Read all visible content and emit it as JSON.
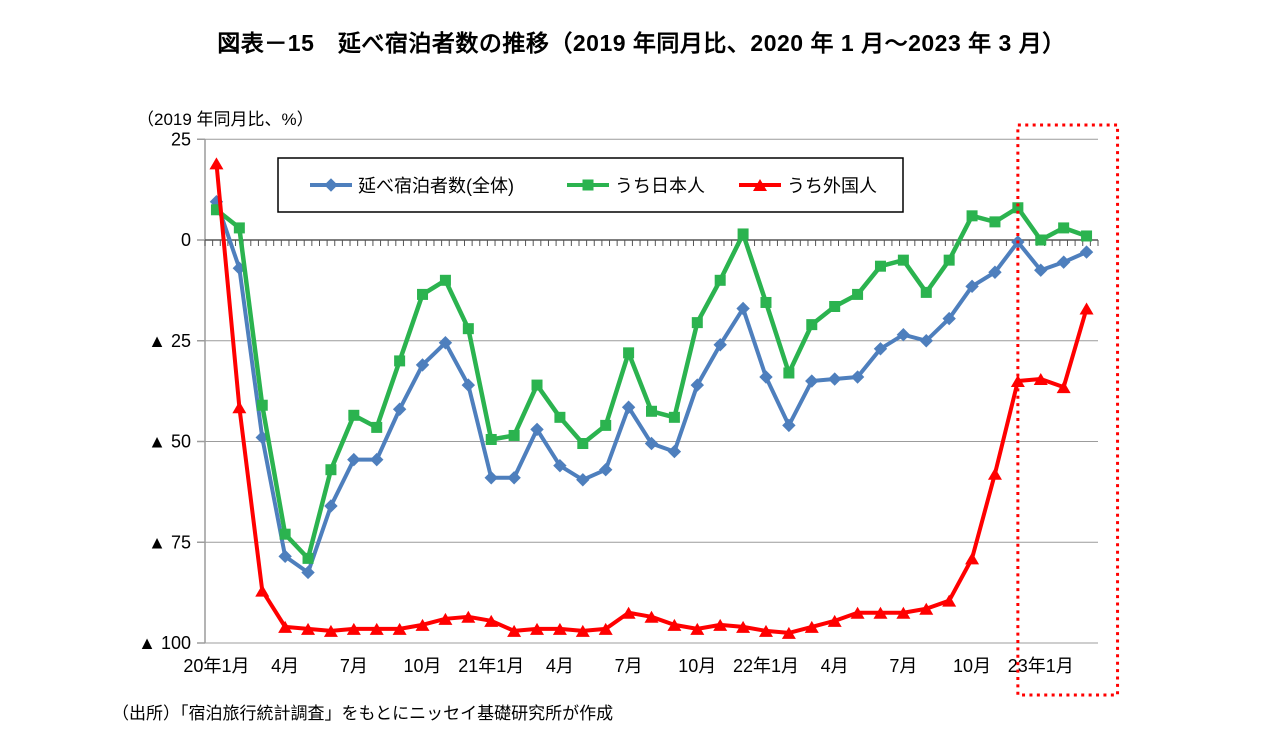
{
  "page": {
    "title": "図表－15　延べ宿泊者数の推移（2019 年同月比、2020 年 1 月～2023 年 3 月）",
    "source_note": "（出所）「宿泊旅行統計調査」をもとにニッセイ基礎研究所が作成"
  },
  "chart_data": {
    "type": "line",
    "title": "図表－15　延べ宿泊者数の推移（2019 年同月比、2020 年 1 月～2023 年 3 月）",
    "unit_label": "（2019 年同月比、%）",
    "grid": "horizontal",
    "legend_position": "top-center-inside",
    "ylim": [
      -100,
      25
    ],
    "y_ticks": [
      {
        "value": 25,
        "label": "25"
      },
      {
        "value": 0,
        "label": "0"
      },
      {
        "value": -25,
        "label": "▲ 25"
      },
      {
        "value": -50,
        "label": "▲ 50"
      },
      {
        "value": -75,
        "label": "▲ 75"
      },
      {
        "value": -100,
        "label": "▲ 100"
      }
    ],
    "x_months": [
      "2020-01",
      "2020-02",
      "2020-03",
      "2020-04",
      "2020-05",
      "2020-06",
      "2020-07",
      "2020-08",
      "2020-09",
      "2020-10",
      "2020-11",
      "2020-12",
      "2021-01",
      "2021-02",
      "2021-03",
      "2021-04",
      "2021-05",
      "2021-06",
      "2021-07",
      "2021-08",
      "2021-09",
      "2021-10",
      "2021-11",
      "2021-12",
      "2022-01",
      "2022-02",
      "2022-03",
      "2022-04",
      "2022-05",
      "2022-06",
      "2022-07",
      "2022-08",
      "2022-09",
      "2022-10",
      "2022-11",
      "2022-12",
      "2023-01",
      "2023-02",
      "2023-03"
    ],
    "x_tick_labels": [
      {
        "index": 0,
        "label": "20年1月"
      },
      {
        "index": 3,
        "label": "4月"
      },
      {
        "index": 6,
        "label": "7月"
      },
      {
        "index": 9,
        "label": "10月"
      },
      {
        "index": 12,
        "label": "21年1月"
      },
      {
        "index": 15,
        "label": "4月"
      },
      {
        "index": 18,
        "label": "7月"
      },
      {
        "index": 21,
        "label": "10月"
      },
      {
        "index": 24,
        "label": "22年1月"
      },
      {
        "index": 27,
        "label": "4月"
      },
      {
        "index": 30,
        "label": "7月"
      },
      {
        "index": 33,
        "label": "10月"
      },
      {
        "index": 36,
        "label": "23年1月"
      }
    ],
    "series": [
      {
        "name": "延べ宿泊者数(全体)",
        "color": "#4E7FBD",
        "marker": "diamond",
        "values": [
          9.5,
          -7,
          -49,
          -78.5,
          -82.5,
          -66,
          -54.5,
          -54.5,
          -42,
          -31,
          -25.5,
          -36,
          -59,
          -59,
          -47,
          -56,
          -59.5,
          -57,
          -41.5,
          -50.5,
          -52.5,
          -36,
          -26,
          -17,
          -34,
          -46,
          -35,
          -34.5,
          -34,
          -27,
          -23.5,
          -25,
          -19.5,
          -11.5,
          -8,
          -0.5,
          -7.5,
          -5.5,
          -3
        ]
      },
      {
        "name": "うち日本人",
        "color": "#2BB34F",
        "marker": "square",
        "values": [
          7.5,
          3,
          -41,
          -73,
          -79,
          -57,
          -43.5,
          -46.5,
          -30,
          -13.5,
          -10,
          -22,
          -49.5,
          -48.5,
          -36,
          -44,
          -50.5,
          -46,
          -28,
          -42.5,
          -44,
          -20.5,
          -10,
          1.5,
          -15.5,
          -33,
          -21,
          -16.5,
          -13.5,
          -6.5,
          -5,
          -13,
          -5,
          6,
          4.5,
          8,
          0,
          3,
          1
        ]
      },
      {
        "name": "うち外国人",
        "color": "#FF0000",
        "marker": "triangle",
        "values": [
          19,
          -41.5,
          -87,
          -96,
          -96.5,
          -97,
          -96.5,
          -96.5,
          -96.5,
          -95.5,
          -94,
          -93.5,
          -94.5,
          -97,
          -96.5,
          -96.5,
          -97,
          -96.5,
          -92.5,
          -93.5,
          -95.5,
          -96.5,
          -95.5,
          -96,
          -97,
          -97.5,
          -96,
          -94.5,
          -92.5,
          -92.5,
          -92.5,
          -91.5,
          -89.5,
          -79,
          -58,
          -35,
          -34.5,
          -36.5,
          -17
        ]
      }
    ],
    "highlight_box": {
      "color": "#FF0000",
      "style": "dotted",
      "from_month": "2022-12",
      "to_month": "2023-03",
      "from_index": 35,
      "to_index": 38
    }
  }
}
